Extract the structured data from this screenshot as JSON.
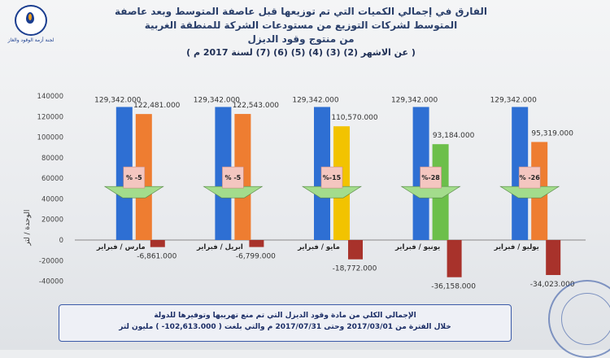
{
  "header": {
    "logo_text": "لجنة أزمة الوقود والغاز",
    "title_line1": "الفارق في إجمالي الكميات التي تم توزيعها قبل عاصفة المتوسط وبعد عاصفة",
    "title_line2": "المتوسط لشركات التوزيع من مستودعات الشركة للمنطقة الغربية",
    "title_line3": "من منتوج وقود الديزل",
    "title_line4": "( عن الاشهر (2) (3) (4) (5) (6) (7) لسنة 2017 م )"
  },
  "footer": {
    "line1": "الإجمالي الكلي من مادة وقود الديزل التي تم منع تهريبها وتوفيرها للدولة",
    "line2": "خلال الفترة من 2017/03/01 وحتى 2017/07/31 م والتي بلغت ( 102,613.000- ) مليون لتر"
  },
  "chart_data": {
    "type": "bar",
    "ylabel": "الوحدة / لتر",
    "ylim": [
      -40000,
      140000
    ],
    "yticks": [
      -40000,
      -20000,
      0,
      20000,
      40000,
      60000,
      80000,
      100000,
      120000,
      140000
    ],
    "ytick_labels": [
      "-40000",
      "-20000",
      "0",
      "20000",
      "40000",
      "60000",
      "80000",
      "100000",
      "120000",
      "140000"
    ],
    "grid": false,
    "groups": [
      {
        "category": "مارس / فبراير",
        "base": 129342,
        "base_label": "129,342.000",
        "month": 122481,
        "month_label": "122,481.000",
        "diff": -6861,
        "diff_label": "-6,861.000",
        "pct": "% -5",
        "month_color": "#ee7d31"
      },
      {
        "category": "ابريل / فبراير",
        "base": 129342,
        "base_label": "129,342.000",
        "month": 122543,
        "month_label": "122,543.000",
        "diff": -6799,
        "diff_label": "-6,799.000",
        "pct": "% -5",
        "month_color": "#ee7d31"
      },
      {
        "category": "مايو / فبراير",
        "base": 129342,
        "base_label": "129,342.000",
        "month": 110570,
        "month_label": "110,570.000",
        "diff": -18772,
        "diff_label": "-18,772.000",
        "pct": "%-15",
        "month_color": "#f2c300"
      },
      {
        "category": "يونيو / فبراير",
        "base": 129342,
        "base_label": "129,342.000",
        "month": 93184,
        "month_label": "93,184.000",
        "diff": -36158,
        "diff_label": "-36,158.000",
        "pct": "%-28",
        "month_color": "#6cbf4a"
      },
      {
        "category": "يوليو / فبراير",
        "base": 129342,
        "base_label": "129,342.000",
        "month": 95319,
        "month_label": "95,319.000",
        "diff": -34023,
        "diff_label": "-34,023.000",
        "pct": "% -26",
        "month_color": "#ee7d31"
      }
    ],
    "colors": {
      "base": "#2e6fd3",
      "diff": "#a8322b",
      "arrow": "#a3dc8c",
      "pct_box": "#f4c6c0"
    }
  }
}
